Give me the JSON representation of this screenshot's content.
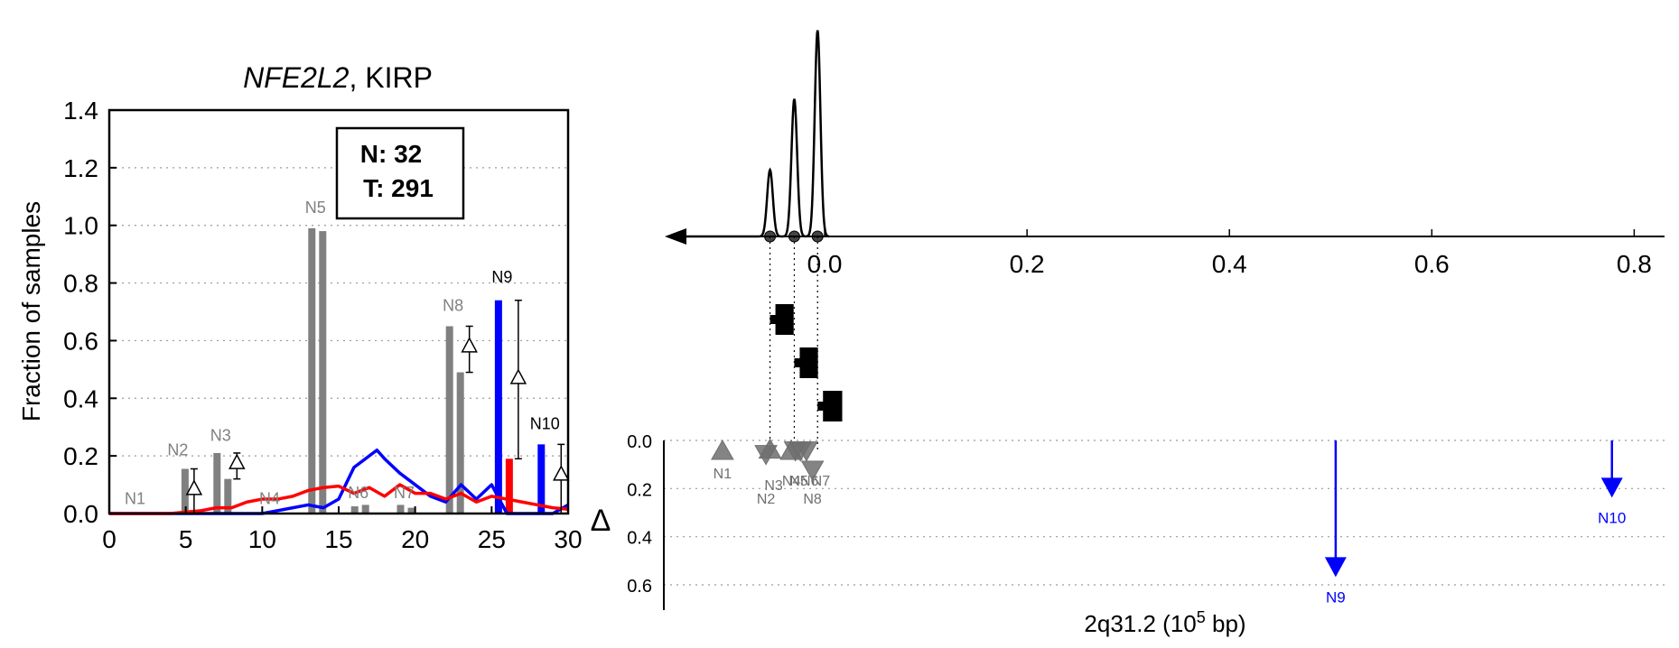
{
  "colors": {
    "normal": "#ff0000",
    "tumor": "#0000ff",
    "neutral": "#808080",
    "axis": "#000000"
  },
  "chart_data": [
    {
      "type": "bar",
      "title_gene": "NFE2L2",
      "title_rest": ", KIRP",
      "xlabel": "",
      "ylabel": "Fraction of samples",
      "xlim": [
        0,
        30
      ],
      "ylim": [
        0,
        1.4
      ],
      "xticks": [
        "0",
        "5",
        "10",
        "15",
        "20",
        "25",
        "30"
      ],
      "yticks": [
        "0.0",
        "0.2",
        "0.4",
        "0.6",
        "0.8",
        "1.0",
        "1.2",
        "1.4"
      ],
      "grid": "y-dotted",
      "counts_box": {
        "n": "N: 32",
        "t": "T: 291"
      },
      "peaks": [
        {
          "label": "N1",
          "x": 1.8,
          "normal": 0.0,
          "tumor": 0.0,
          "group": "neutral",
          "label_y": 0.02
        },
        {
          "label": "N2",
          "x": 4.6,
          "normal": 0.0,
          "tumor": 0.155,
          "group": "neutral",
          "label_y": 0.19,
          "delta": 0.085,
          "delta_err": [
            0.0,
            0.155
          ]
        },
        {
          "label": "N3",
          "x": 7.4,
          "normal": 0.21,
          "tumor": 0.12,
          "group": "neutral",
          "label_y": 0.24,
          "delta": 0.175,
          "delta_err": [
            0.12,
            0.21
          ]
        },
        {
          "label": "N4",
          "x": 10.6,
          "normal": 0.0,
          "tumor": 0.0,
          "group": "neutral",
          "label_y": 0.02
        },
        {
          "label": "N5",
          "x": 13.6,
          "normal": 0.99,
          "tumor": 0.98,
          "group": "neutral",
          "label_y": 1.03
        },
        {
          "label": "N6",
          "x": 16.4,
          "normal": 0.025,
          "tumor": 0.03,
          "group": "neutral",
          "label_y": 0.04
        },
        {
          "label": "N7",
          "x": 19.4,
          "normal": 0.03,
          "tumor": 0.02,
          "group": "neutral",
          "label_y": 0.04
        },
        {
          "label": "N8",
          "x": 22.6,
          "normal": 0.65,
          "tumor": 0.49,
          "group": "neutral",
          "label_y": 0.69,
          "delta": 0.58,
          "delta_err": [
            0.49,
            0.65
          ]
        },
        {
          "label": "N9",
          "x": 25.8,
          "normal": 0.0,
          "tumor": 0.74,
          "normal_left": 0.19,
          "group": "tumor",
          "label_y": 0.79,
          "delta": 0.47,
          "delta_err": [
            0.19,
            0.74
          ]
        },
        {
          "label": "N10",
          "x": 28.6,
          "normal": 0.0,
          "tumor": 0.24,
          "group": "tumor",
          "label_y": 0.28,
          "delta": 0.135,
          "delta_err": [
            0.0,
            0.24
          ]
        }
      ],
      "series": [
        {
          "name": "tumor density",
          "color": "#0000ff",
          "x": [
            0,
            2,
            4,
            6,
            8,
            9,
            10,
            11,
            12,
            13,
            14,
            15,
            16,
            17,
            17.5,
            18,
            19,
            20,
            21,
            22,
            23,
            24,
            25,
            26,
            27,
            28,
            29,
            30
          ],
          "y": [
            0,
            0,
            0,
            0,
            0,
            0,
            0.0,
            0.01,
            0.02,
            0.03,
            0.02,
            0.05,
            0.16,
            0.2,
            0.22,
            0.19,
            0.14,
            0.1,
            0.06,
            0.04,
            0.1,
            0.05,
            0.1,
            0.0,
            0.0,
            0.0,
            0.0,
            0.03
          ]
        },
        {
          "name": "normal density",
          "color": "#ff0000",
          "x": [
            0,
            2,
            4,
            5,
            6,
            7,
            8,
            9,
            10,
            11,
            12,
            13,
            14,
            15,
            16,
            17,
            18,
            19,
            20,
            21,
            22,
            23,
            24,
            25,
            26,
            27,
            28,
            29,
            30
          ],
          "y": [
            0,
            0,
            0,
            0.005,
            0.01,
            0.02,
            0.02,
            0.04,
            0.05,
            0.05,
            0.06,
            0.08,
            0.09,
            0.095,
            0.07,
            0.09,
            0.06,
            0.1,
            0.07,
            0.07,
            0.05,
            0.07,
            0.04,
            0.06,
            0.05,
            0.04,
            0.03,
            0.02,
            0.015
          ]
        }
      ]
    },
    {
      "type": "line",
      "xlabel_main": "2q31.2 (10",
      "xlabel_sup": "5",
      "xlabel_tail": " bp)",
      "xlim": [
        -0.15,
        0.83
      ],
      "xticks": [
        "0.0",
        "0.2",
        "0.4",
        "0.6",
        "0.8"
      ],
      "delta_label": "Δ",
      "delta_ylim": [
        0.0,
        0.65
      ],
      "delta_yticks": [
        "0.0",
        "0.2",
        "0.4",
        "0.6"
      ],
      "density_peaks": [
        {
          "x": -0.054,
          "height": 0.31
        },
        {
          "x": -0.03,
          "height": 0.64
        },
        {
          "x": -0.007,
          "height": 0.96
        }
      ],
      "segments": [
        {
          "x": -0.054,
          "x_end": -0.036,
          "level": 0
        },
        {
          "x": -0.03,
          "x_end": -0.012,
          "level": 1
        },
        {
          "x": -0.007,
          "x_end": 0.012,
          "level": 2
        }
      ],
      "peak_markers": [
        {
          "label": "N1",
          "x": -0.101,
          "delta": 0.045,
          "shape": "up",
          "group": "neutral"
        },
        {
          "label": "N2",
          "x": -0.058,
          "delta": 0.055,
          "shape": "down",
          "group": "neutral"
        },
        {
          "label": "N3",
          "x": -0.054,
          "delta": 0.04,
          "shape": "up",
          "group": "neutral"
        },
        {
          "label": "N4",
          "x": -0.033,
          "delta": 0.045,
          "shape": "up",
          "group": "neutral"
        },
        {
          "label": "N5",
          "x": -0.029,
          "delta": 0.04,
          "shape": "down",
          "group": "neutral"
        },
        {
          "label": "N6",
          "x": -0.024,
          "delta": 0.04,
          "shape": "down",
          "group": "neutral"
        },
        {
          "label": "N7",
          "x": -0.018,
          "delta": 0.04,
          "shape": "down",
          "group": "neutral"
        },
        {
          "label": "N8",
          "x": -0.012,
          "delta": 0.12,
          "shape": "down",
          "group": "neutral"
        },
        {
          "label": "N9",
          "x": 0.505,
          "delta": 0.56,
          "shape": "arrow",
          "group": "tumor"
        },
        {
          "label": "N10",
          "x": 0.778,
          "delta": 0.23,
          "shape": "arrow",
          "group": "tumor"
        }
      ]
    }
  ]
}
